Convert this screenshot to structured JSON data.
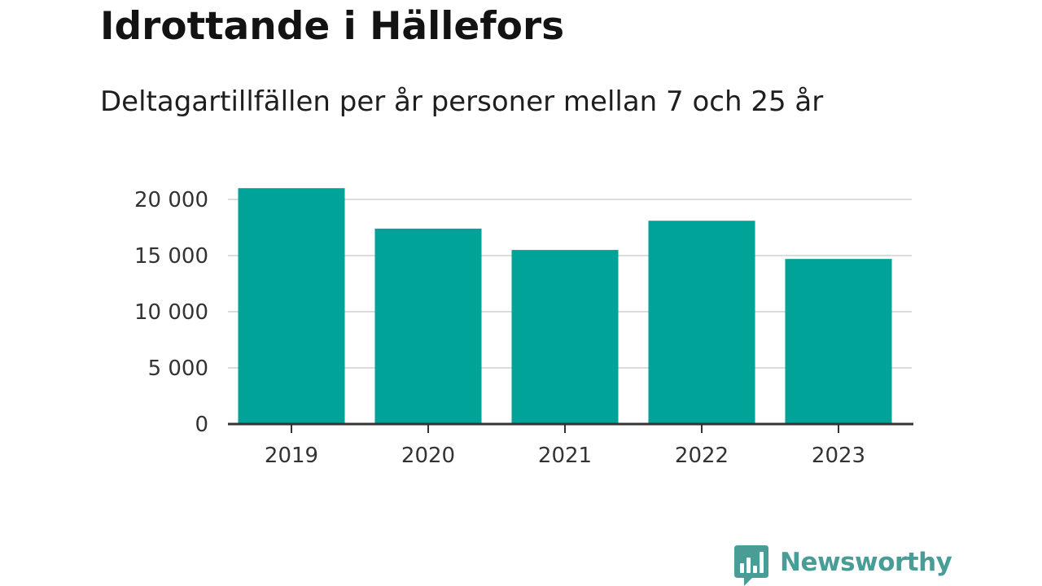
{
  "header": {
    "title": "Idrottande i Hällefors",
    "subtitle": "Deltagartillfällen per år personer mellan 7 och 25 år"
  },
  "chart_data": {
    "type": "bar",
    "categories": [
      "2019",
      "2020",
      "2021",
      "2022",
      "2023"
    ],
    "values": [
      21000,
      17400,
      15500,
      18100,
      14700
    ],
    "ylim": [
      0,
      20000
    ],
    "yticks": [
      0,
      5000,
      10000,
      15000,
      20000
    ],
    "ytick_labels": [
      "0",
      "5 000",
      "10 000",
      "15 000",
      "20 000"
    ],
    "xlabel": "",
    "ylabel": "",
    "grid": true,
    "bar_color": "#00a398"
  },
  "branding": {
    "name": "Newsworthy",
    "icon": "bar-chart-speech-bubble-icon",
    "color": "#4a9d97"
  }
}
